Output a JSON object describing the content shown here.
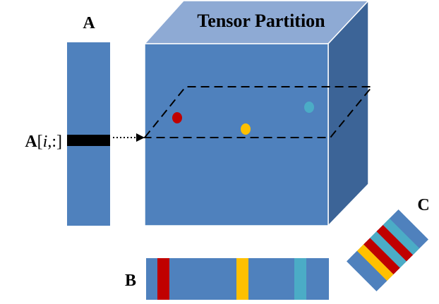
{
  "title": "Tensor Partition",
  "labels": {
    "a": "A",
    "b": "B",
    "c": "C",
    "row_bold": "A",
    "row_open": "[",
    "row_index": "i",
    "row_rest": ",:]"
  },
  "colors": {
    "cube_front": "#4f81bd",
    "cube_top": "#8eaad4",
    "cube_side": "#3c6497",
    "edge": "#ffffff",
    "slice_row": "#000000",
    "dot_red": "#c00000",
    "dot_yellow": "#ffc000",
    "dot_teal": "#4bacc6"
  },
  "icons": {
    "arrow": "dotted-arrow-right",
    "plane": "dashed-slice-plane"
  }
}
